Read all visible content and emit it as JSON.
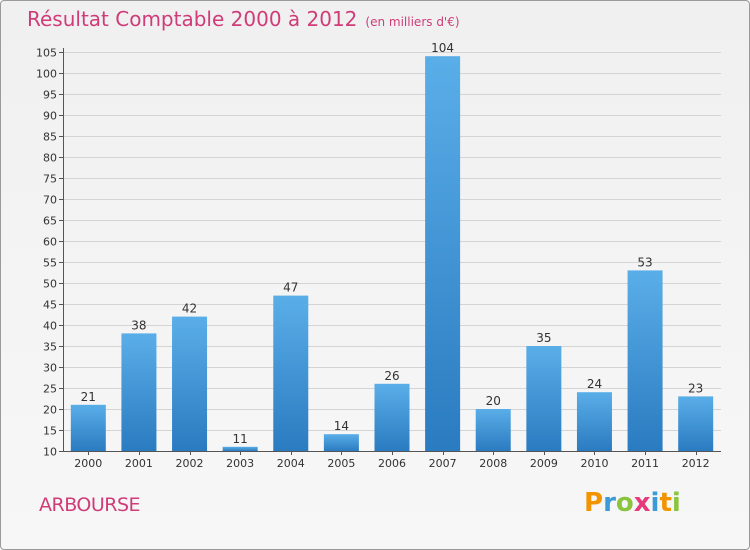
{
  "title": "Résultat Comptable 2000 à 2012",
  "subtitle": "(en milliers d'€)",
  "place_name": "ARBOURSE",
  "logo": {
    "text": "Proxiti",
    "letters": [
      "P",
      "r",
      "o",
      "x",
      "i",
      "t",
      "i"
    ]
  },
  "colors": {
    "title": "#cf3c78",
    "bar_top": "#5aaee8",
    "bar_bottom": "#2a7bc0",
    "axis": "#555555",
    "grid": "#d4d4d4"
  },
  "chart_data": {
    "type": "bar",
    "title": "Résultat Comptable 2000 à 2012",
    "subtitle": "(en milliers d'€)",
    "xlabel": "",
    "ylabel": "",
    "categories": [
      "2000",
      "2001",
      "2002",
      "2003",
      "2004",
      "2005",
      "2006",
      "2007",
      "2008",
      "2009",
      "2010",
      "2011",
      "2012"
    ],
    "values": [
      21,
      38,
      42,
      11,
      47,
      14,
      26,
      104,
      20,
      35,
      24,
      53,
      23
    ],
    "ylim": [
      10,
      105
    ],
    "yticks": [
      10,
      15,
      20,
      25,
      30,
      35,
      40,
      45,
      50,
      55,
      60,
      65,
      70,
      75,
      80,
      85,
      90,
      95,
      100,
      105
    ],
    "grid": true
  }
}
